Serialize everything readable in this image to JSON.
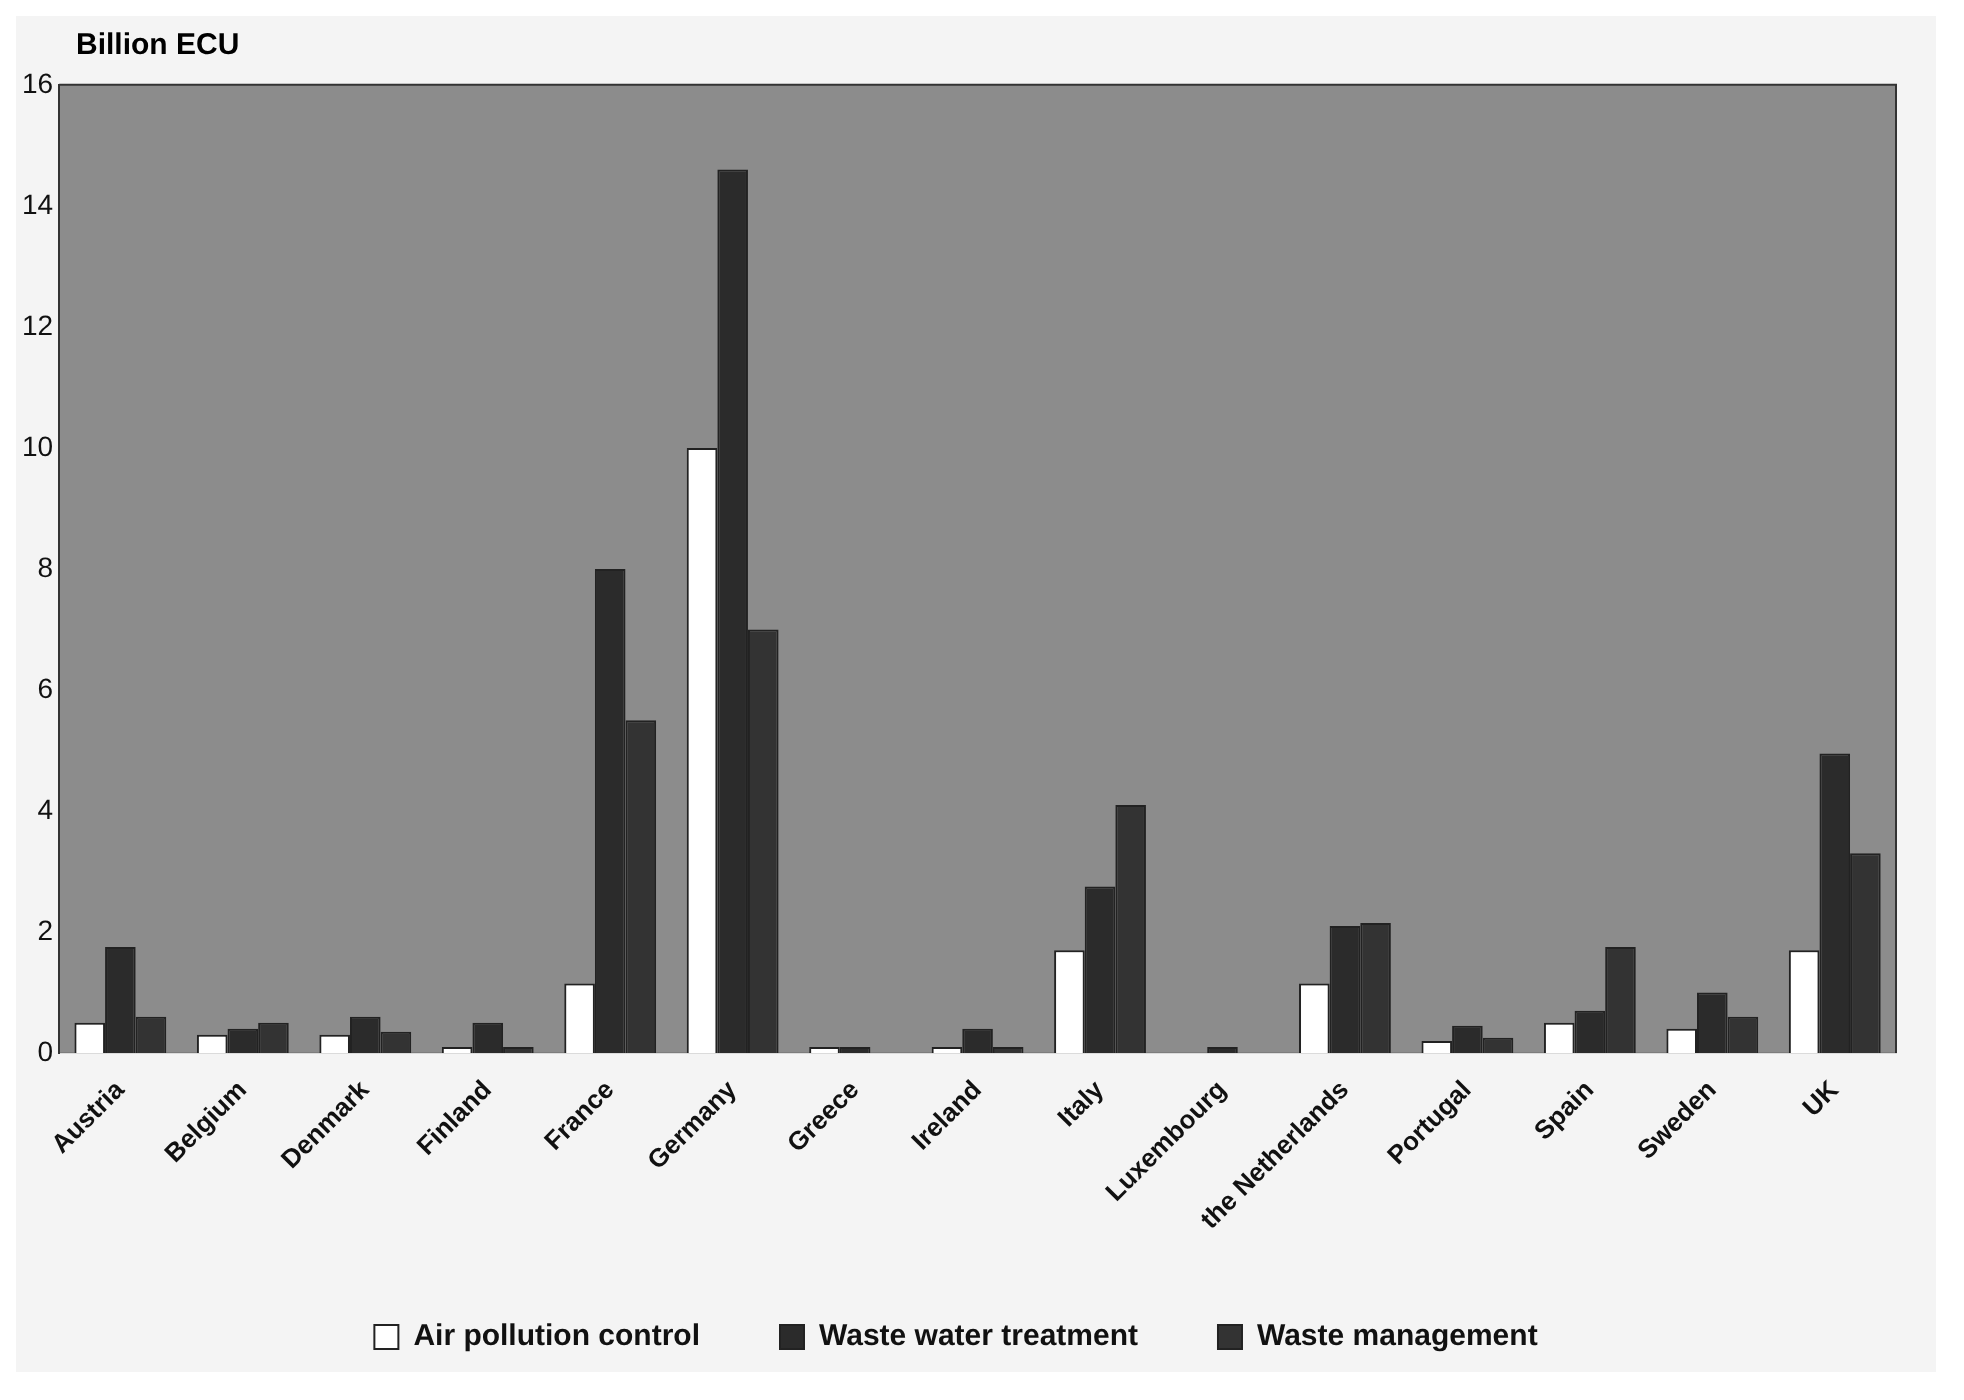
{
  "chart_data": {
    "type": "bar",
    "ylabel": "Billion ECU",
    "categories": [
      "Austria",
      "Belgium",
      "Denmark",
      "Finland",
      "France",
      "Germany",
      "Greece",
      "Ireland",
      "Italy",
      "Luxembourg",
      "the Netherlands",
      "Portugal",
      "Spain",
      "Sweden",
      "UK"
    ],
    "series": [
      {
        "name": "Air pollution control",
        "color": "#ffffff",
        "values": [
          0.5,
          0.3,
          0.3,
          0.1,
          1.15,
          10,
          0.1,
          0.1,
          1.7,
          null,
          1.15,
          0.2,
          0.5,
          0.4,
          1.7
        ]
      },
      {
        "name": "Waste water treatment",
        "color": "#2b2b2b",
        "values": [
          1.75,
          0.4,
          0.6,
          0.5,
          8.0,
          14.6,
          0.1,
          0.4,
          2.75,
          0.1,
          2.1,
          0.45,
          0.7,
          1.0,
          4.95
        ]
      },
      {
        "name": "Waste management",
        "color": "#333333",
        "values": [
          0.6,
          0.5,
          0.35,
          0.1,
          5.5,
          7.0,
          null,
          0.1,
          4.1,
          null,
          2.15,
          0.25,
          1.75,
          0.6,
          3.3
        ]
      }
    ],
    "ylim": [
      0,
      16
    ],
    "yticks": [
      0,
      2,
      4,
      6,
      8,
      10,
      12,
      14,
      16
    ],
    "grid": false,
    "legend": "bottom"
  }
}
